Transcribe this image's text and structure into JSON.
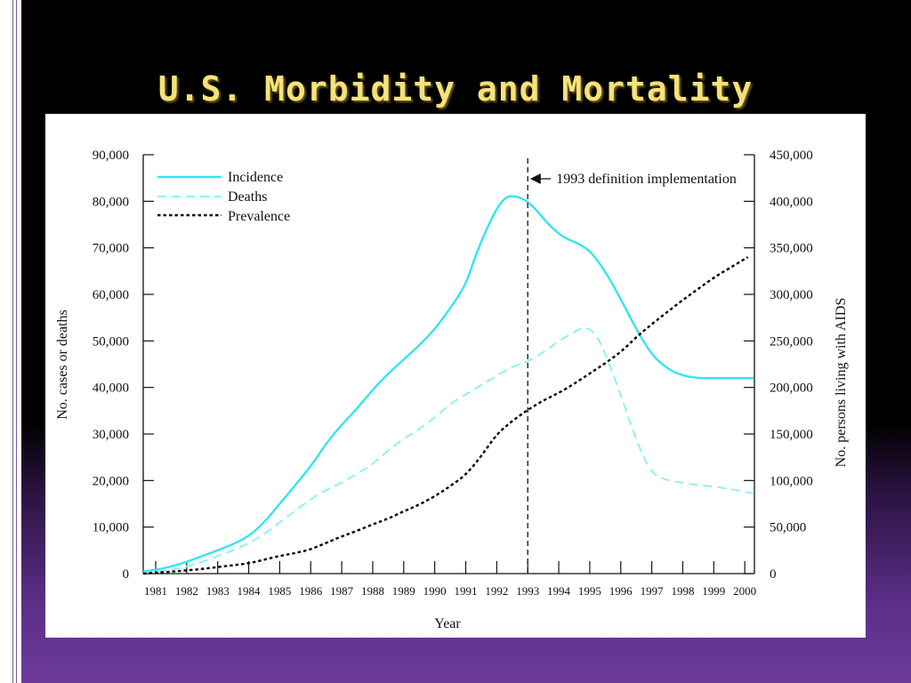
{
  "slide": {
    "title": "U.S. Morbidity and Mortality"
  },
  "colors": {
    "incidence": "#33e6ee",
    "deaths": "#8ff0f4",
    "prevalence": "#000000",
    "title": "#f6e27a"
  },
  "chart_data": {
    "type": "line",
    "title": "",
    "xlabel": "Year",
    "ylabel": "No. cases or deaths",
    "y2label": "No. persons living with AIDS",
    "x_ticks": [
      "1981",
      "1982",
      "1983",
      "1984",
      "1985",
      "1986",
      "1987",
      "1988",
      "1989",
      "1990",
      "1991",
      "1992",
      "1993",
      "1994",
      "1995",
      "1996",
      "1997",
      "1998",
      "1999",
      "2000"
    ],
    "xlim": [
      1981,
      2000
    ],
    "ylim": [
      0,
      90000
    ],
    "y_ticks": [
      "0",
      "10,000",
      "20,000",
      "30,000",
      "40,000",
      "50,000",
      "60,000",
      "70,000",
      "80,000",
      "90,000"
    ],
    "y2lim": [
      0,
      450000
    ],
    "y2_ticks": [
      "0",
      "50,000",
      "100,000",
      "150,000",
      "200,000",
      "250,000",
      "300,000",
      "350,000",
      "400,000",
      "450,000"
    ],
    "legend_position": "top-left",
    "annotation": {
      "x": 1993,
      "label": "1993 definition implementation"
    },
    "series": [
      {
        "name": "Incidence",
        "axis": "left",
        "style": "solid",
        "points": [
          [
            1980.6,
            500
          ],
          [
            1981,
            800
          ],
          [
            1981.5,
            1500
          ],
          [
            1982,
            2500
          ],
          [
            1982.5,
            3800
          ],
          [
            1983,
            5000
          ],
          [
            1983.5,
            6300
          ],
          [
            1984,
            8000
          ],
          [
            1984.5,
            11000
          ],
          [
            1985,
            15000
          ],
          [
            1985.5,
            19000
          ],
          [
            1986,
            23000
          ],
          [
            1986.5,
            28000
          ],
          [
            1987,
            32000
          ],
          [
            1987.5,
            35500
          ],
          [
            1988,
            39500
          ],
          [
            1988.5,
            43000
          ],
          [
            1989,
            46000
          ],
          [
            1989.5,
            49000
          ],
          [
            1990,
            52500
          ],
          [
            1990.5,
            57000
          ],
          [
            1991,
            62000
          ],
          [
            1991.3,
            68000
          ],
          [
            1991.6,
            73000
          ],
          [
            1992,
            78500
          ],
          [
            1992.3,
            81000
          ],
          [
            1992.6,
            81200
          ],
          [
            1993,
            80000
          ],
          [
            1993.3,
            78000
          ],
          [
            1993.6,
            75500
          ],
          [
            1994,
            73000
          ],
          [
            1994.3,
            71800
          ],
          [
            1994.6,
            71000
          ],
          [
            1995,
            69500
          ],
          [
            1995.5,
            65000
          ],
          [
            1996,
            59000
          ],
          [
            1996.5,
            52500
          ],
          [
            1997,
            47000
          ],
          [
            1997.5,
            44000
          ],
          [
            1998,
            42500
          ],
          [
            1998.5,
            42000
          ],
          [
            1999,
            42000
          ],
          [
            1999.5,
            42000
          ],
          [
            2000.3,
            42000
          ]
        ]
      },
      {
        "name": "Deaths",
        "axis": "left",
        "style": "dashed",
        "points": [
          [
            1980.6,
            200
          ],
          [
            1981,
            400
          ],
          [
            1981.5,
            800
          ],
          [
            1982,
            1500
          ],
          [
            1982.5,
            2500
          ],
          [
            1983,
            3800
          ],
          [
            1983.5,
            5000
          ],
          [
            1984,
            6500
          ],
          [
            1984.5,
            8500
          ],
          [
            1985,
            11000
          ],
          [
            1985.5,
            13500
          ],
          [
            1986,
            16000
          ],
          [
            1986.5,
            18000
          ],
          [
            1987,
            19500
          ],
          [
            1987.5,
            21500
          ],
          [
            1988,
            23500
          ],
          [
            1988.5,
            26500
          ],
          [
            1989,
            29000
          ],
          [
            1989.5,
            31000
          ],
          [
            1990,
            33500
          ],
          [
            1990.5,
            36500
          ],
          [
            1991,
            38500
          ],
          [
            1991.5,
            40500
          ],
          [
            1992,
            42500
          ],
          [
            1992.5,
            44500
          ],
          [
            1993,
            45500
          ],
          [
            1993.5,
            47500
          ],
          [
            1994,
            50000
          ],
          [
            1994.4,
            51500
          ],
          [
            1994.8,
            53000
          ],
          [
            1995.1,
            52200
          ],
          [
            1995.4,
            49000
          ],
          [
            1995.8,
            42000
          ],
          [
            1996.2,
            34500
          ],
          [
            1996.6,
            27000
          ],
          [
            1997,
            21500
          ],
          [
            1997.5,
            20000
          ],
          [
            1998,
            19500
          ],
          [
            1998.5,
            19000
          ],
          [
            1999,
            18700
          ],
          [
            1999.5,
            18200
          ],
          [
            2000.3,
            17200
          ]
        ]
      },
      {
        "name": "Prevalence",
        "axis": "right",
        "style": "dotted",
        "points": [
          [
            1980.6,
            0
          ],
          [
            1981,
            1000
          ],
          [
            1981.5,
            2000
          ],
          [
            1982,
            3500
          ],
          [
            1982.5,
            5000
          ],
          [
            1983,
            7000
          ],
          [
            1983.5,
            9000
          ],
          [
            1984,
            11000
          ],
          [
            1984.5,
            15000
          ],
          [
            1985,
            19000
          ],
          [
            1985.5,
            22000
          ],
          [
            1986,
            26000
          ],
          [
            1986.5,
            33000
          ],
          [
            1987,
            40000
          ],
          [
            1987.5,
            46000
          ],
          [
            1988,
            53000
          ],
          [
            1988.5,
            59000
          ],
          [
            1989,
            67000
          ],
          [
            1989.5,
            74000
          ],
          [
            1990,
            83000
          ],
          [
            1990.5,
            94000
          ],
          [
            1991,
            106000
          ],
          [
            1991.5,
            126000
          ],
          [
            1992,
            150000
          ],
          [
            1992.5,
            164000
          ],
          [
            1993,
            176000
          ],
          [
            1993.5,
            186000
          ],
          [
            1994,
            194000
          ],
          [
            1994.5,
            204000
          ],
          [
            1995,
            215000
          ],
          [
            1995.5,
            226000
          ],
          [
            1996,
            238000
          ],
          [
            1996.5,
            254000
          ],
          [
            1997,
            268000
          ],
          [
            1997.5,
            281000
          ],
          [
            1998,
            294000
          ],
          [
            1998.5,
            306000
          ],
          [
            1999,
            318000
          ],
          [
            1999.5,
            328000
          ],
          [
            2000.1,
            340000
          ]
        ]
      }
    ]
  }
}
